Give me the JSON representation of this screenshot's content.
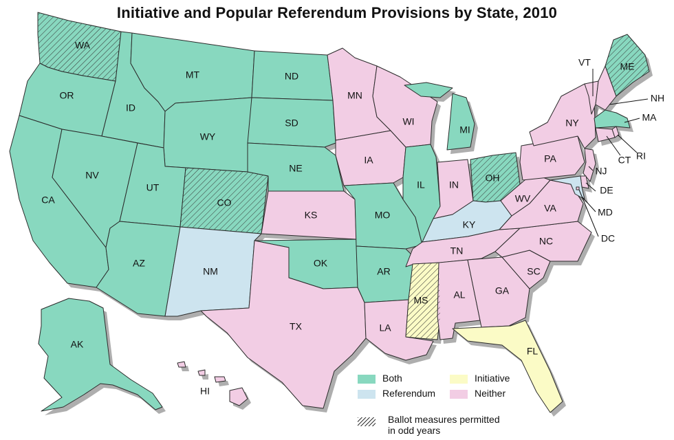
{
  "title": "Initiative and Popular Referendum Provisions by State, 2010",
  "colors": {
    "both": "#88d8bf",
    "referendum": "#cde4ef",
    "initiative": "#fbfbc6",
    "neither": "#f2cde4",
    "hatch": "#333333",
    "shadow": "#6b6b6b"
  },
  "legend": {
    "both": "Both",
    "referendum": "Referendum",
    "initiative": "Initiative",
    "neither": "Neither",
    "odd_years_line1": "Ballot measures permitted",
    "odd_years_line2": "in odd years"
  },
  "states": [
    {
      "abbr": "WA",
      "category": "both",
      "odd_years": true
    },
    {
      "abbr": "OR",
      "category": "both",
      "odd_years": false
    },
    {
      "abbr": "CA",
      "category": "both",
      "odd_years": false
    },
    {
      "abbr": "ID",
      "category": "both",
      "odd_years": false
    },
    {
      "abbr": "NV",
      "category": "both",
      "odd_years": false
    },
    {
      "abbr": "MT",
      "category": "both",
      "odd_years": false
    },
    {
      "abbr": "WY",
      "category": "both",
      "odd_years": false
    },
    {
      "abbr": "UT",
      "category": "both",
      "odd_years": false
    },
    {
      "abbr": "AZ",
      "category": "both",
      "odd_years": false
    },
    {
      "abbr": "CO",
      "category": "both",
      "odd_years": true
    },
    {
      "abbr": "NM",
      "category": "referendum",
      "odd_years": false
    },
    {
      "abbr": "ND",
      "category": "both",
      "odd_years": false
    },
    {
      "abbr": "SD",
      "category": "both",
      "odd_years": false
    },
    {
      "abbr": "NE",
      "category": "both",
      "odd_years": false
    },
    {
      "abbr": "KS",
      "category": "neither",
      "odd_years": false
    },
    {
      "abbr": "OK",
      "category": "both",
      "odd_years": false
    },
    {
      "abbr": "TX",
      "category": "neither",
      "odd_years": false
    },
    {
      "abbr": "MN",
      "category": "neither",
      "odd_years": false
    },
    {
      "abbr": "IA",
      "category": "neither",
      "odd_years": false
    },
    {
      "abbr": "MO",
      "category": "both",
      "odd_years": false
    },
    {
      "abbr": "AR",
      "category": "both",
      "odd_years": false
    },
    {
      "abbr": "LA",
      "category": "neither",
      "odd_years": false
    },
    {
      "abbr": "WI",
      "category": "neither",
      "odd_years": false
    },
    {
      "abbr": "IL",
      "category": "both",
      "odd_years": false
    },
    {
      "abbr": "MI",
      "category": "both",
      "odd_years": false
    },
    {
      "abbr": "IN",
      "category": "neither",
      "odd_years": false
    },
    {
      "abbr": "OH",
      "category": "both",
      "odd_years": true
    },
    {
      "abbr": "KY",
      "category": "referendum",
      "odd_years": false
    },
    {
      "abbr": "TN",
      "category": "neither",
      "odd_years": false
    },
    {
      "abbr": "MS",
      "category": "initiative",
      "odd_years": true
    },
    {
      "abbr": "AL",
      "category": "neither",
      "odd_years": false
    },
    {
      "abbr": "GA",
      "category": "neither",
      "odd_years": false
    },
    {
      "abbr": "FL",
      "category": "initiative",
      "odd_years": false
    },
    {
      "abbr": "SC",
      "category": "neither",
      "odd_years": false
    },
    {
      "abbr": "NC",
      "category": "neither",
      "odd_years": false
    },
    {
      "abbr": "VA",
      "category": "neither",
      "odd_years": false
    },
    {
      "abbr": "WV",
      "category": "neither",
      "odd_years": false
    },
    {
      "abbr": "PA",
      "category": "neither",
      "odd_years": false
    },
    {
      "abbr": "NY",
      "category": "neither",
      "odd_years": false
    },
    {
      "abbr": "VT",
      "category": "neither",
      "odd_years": false
    },
    {
      "abbr": "NH",
      "category": "neither",
      "odd_years": false
    },
    {
      "abbr": "ME",
      "category": "both",
      "odd_years": true
    },
    {
      "abbr": "MA",
      "category": "both",
      "odd_years": false
    },
    {
      "abbr": "RI",
      "category": "neither",
      "odd_years": false
    },
    {
      "abbr": "CT",
      "category": "neither",
      "odd_years": false
    },
    {
      "abbr": "NJ",
      "category": "neither",
      "odd_years": false
    },
    {
      "abbr": "DE",
      "category": "neither",
      "odd_years": false
    },
    {
      "abbr": "MD",
      "category": "referendum",
      "odd_years": false
    },
    {
      "abbr": "DC",
      "category": "neither",
      "odd_years": false
    },
    {
      "abbr": "AK",
      "category": "both",
      "odd_years": false
    },
    {
      "abbr": "HI",
      "category": "neither",
      "odd_years": false
    }
  ]
}
